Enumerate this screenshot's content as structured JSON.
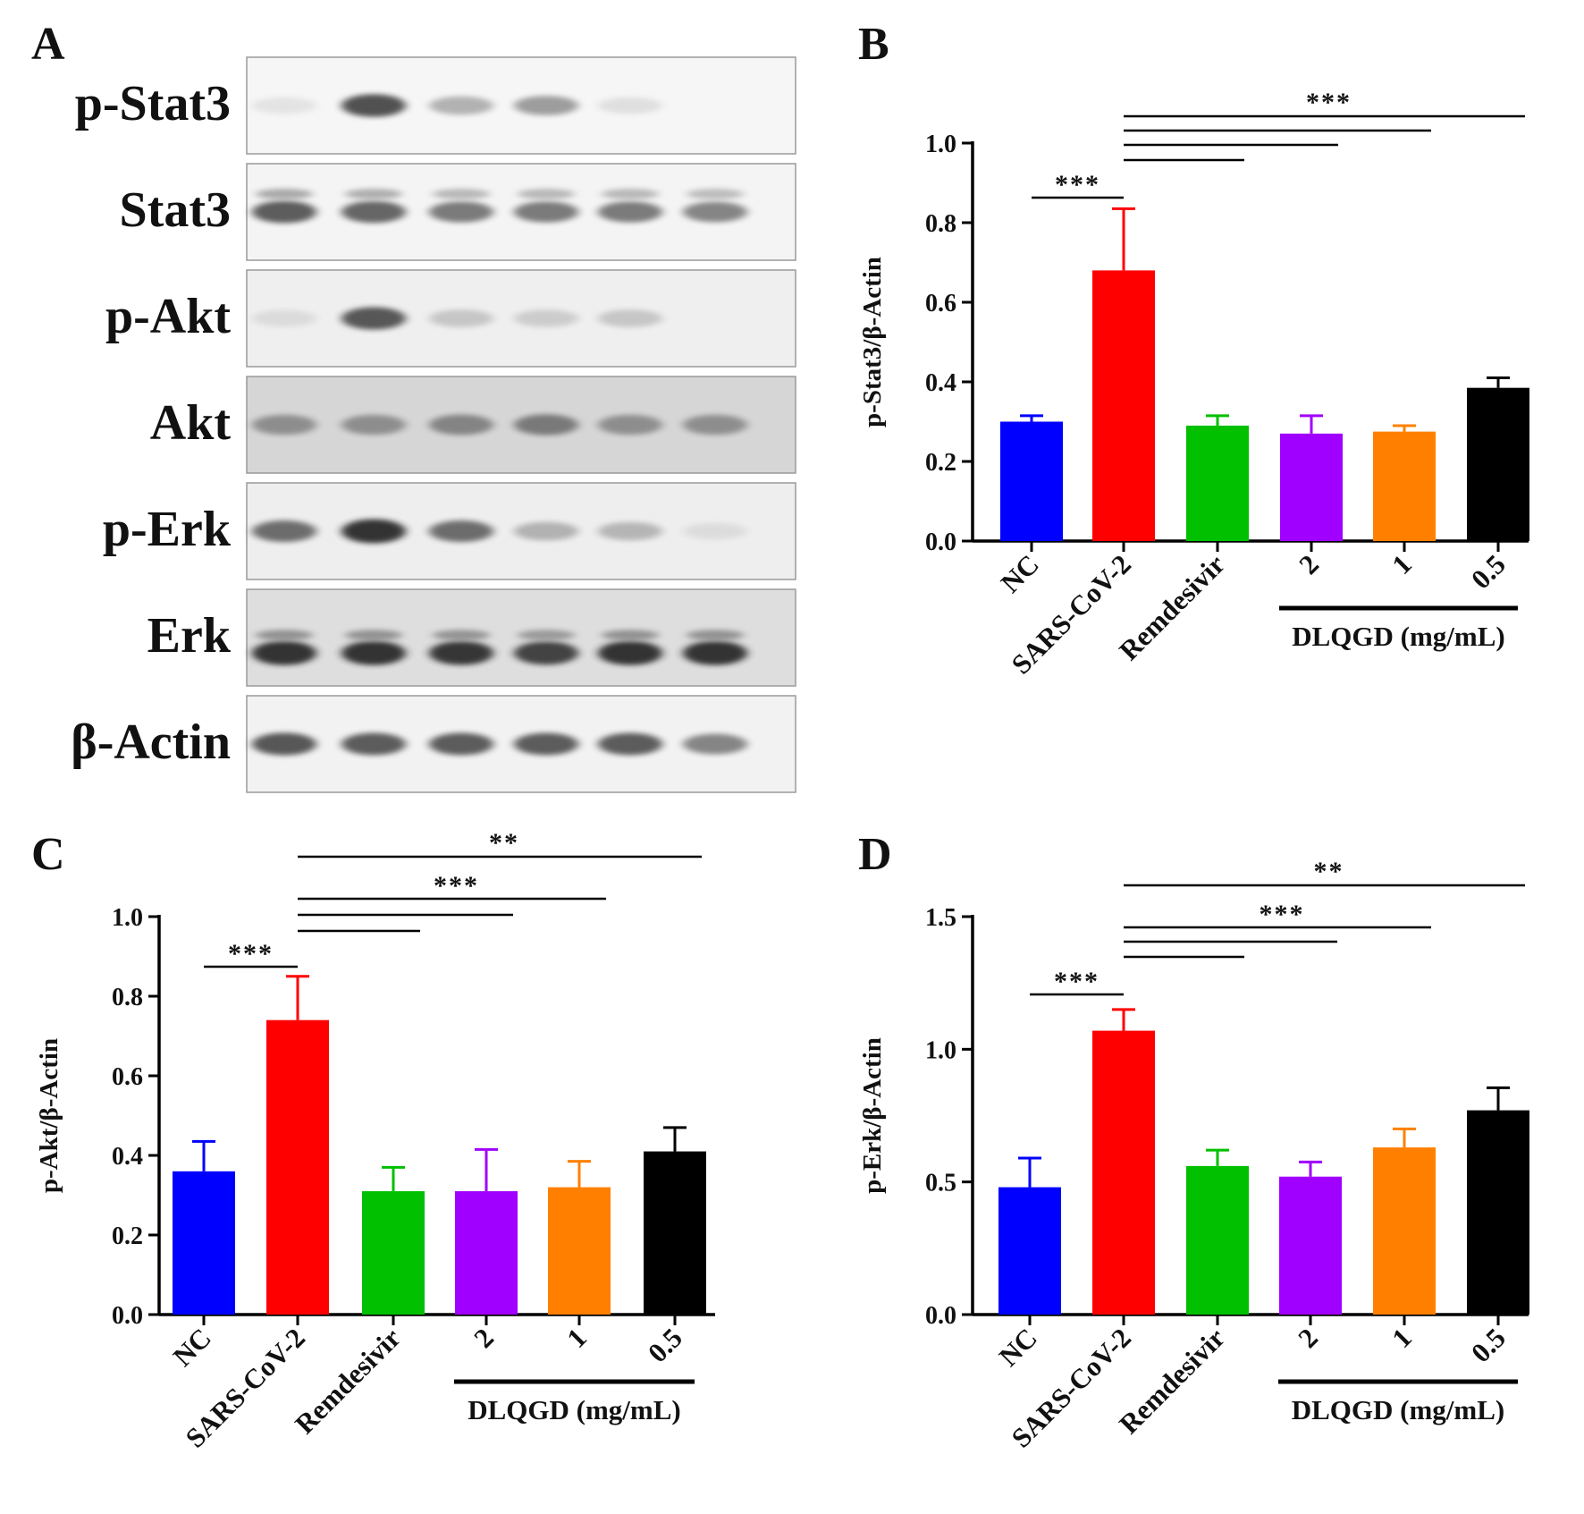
{
  "colors": {
    "NC": "#0000ff",
    "SARS-CoV-2": "#ff0000",
    "Remdesivir": "#00c000",
    "2": "#a000ff",
    "1": "#ff8000",
    "0.5": "#000000"
  },
  "panel_a": {
    "letter": "A",
    "rows": [
      {
        "label": "p-Stat3",
        "bg": "#f6f6f6",
        "bands": [
          0.04,
          0.75,
          0.28,
          0.38,
          0.06,
          0.0
        ],
        "lower": false,
        "double": false
      },
      {
        "label": "Stat3",
        "bg": "#f4f4f4",
        "bands": [
          0.7,
          0.65,
          0.55,
          0.55,
          0.55,
          0.5
        ],
        "lower": false,
        "double": true
      },
      {
        "label": "p-Akt",
        "bg": "#efefef",
        "bands": [
          0.08,
          0.72,
          0.18,
          0.15,
          0.18,
          0.0
        ],
        "lower": false,
        "double": false
      },
      {
        "label": "Akt",
        "bg": "#d6d6d6",
        "bands": [
          0.45,
          0.45,
          0.5,
          0.55,
          0.45,
          0.45
        ],
        "lower": false,
        "double": false
      },
      {
        "label": "p-Erk",
        "bg": "#eeeeee",
        "bands": [
          0.62,
          0.9,
          0.62,
          0.28,
          0.26,
          0.07
        ],
        "lower": false,
        "double": false
      },
      {
        "label": "Erk",
        "bg": "#dedede",
        "bands": [
          0.9,
          0.9,
          0.88,
          0.82,
          0.9,
          0.9
        ],
        "lower": true,
        "double": true
      },
      {
        "label": "β-Actin",
        "bg": "#f2f2f2",
        "bands": [
          0.72,
          0.7,
          0.7,
          0.7,
          0.7,
          0.5
        ],
        "lower": false,
        "double": false
      }
    ]
  },
  "chart_data": [
    {
      "panel": "B",
      "type": "bar",
      "ylabel": "p-Stat3/β-Actin",
      "ylim": [
        0,
        1.0
      ],
      "yticks": [
        "0.0",
        "0.2",
        "0.4",
        "0.6",
        "0.8",
        "1.0"
      ],
      "categories": [
        "NC",
        "SARS-CoV-2",
        "Remdesivir",
        "2",
        "1",
        "0.5"
      ],
      "values": [
        0.3,
        0.68,
        0.29,
        0.27,
        0.275,
        0.385
      ],
      "errors": [
        0.015,
        0.155,
        0.025,
        0.045,
        0.015,
        0.025
      ],
      "group_label": "DLQGD (mg/mL)",
      "sig_top": "***",
      "sig_left": "***"
    },
    {
      "panel": "C",
      "type": "bar",
      "ylabel": "p-Akt/β-Actin",
      "ylim": [
        0,
        1.0
      ],
      "yticks": [
        "0.0",
        "0.2",
        "0.4",
        "0.6",
        "0.8",
        "1.0"
      ],
      "categories": [
        "NC",
        "SARS-CoV-2",
        "Remdesivir",
        "2",
        "1",
        "0.5"
      ],
      "values": [
        0.36,
        0.74,
        0.31,
        0.31,
        0.32,
        0.41
      ],
      "errors": [
        0.075,
        0.11,
        0.06,
        0.105,
        0.065,
        0.06
      ],
      "group_label": "DLQGD (mg/mL)",
      "sig_top": "**",
      "sig_mid": "***",
      "sig_left": "***"
    },
    {
      "panel": "D",
      "type": "bar",
      "ylabel": "p-Erk/β-Actin",
      "ylim": [
        0,
        1.5
      ],
      "yticks": [
        "0.0",
        "0.5",
        "1.0",
        "1.5"
      ],
      "categories": [
        "NC",
        "SARS-CoV-2",
        "Remdesivir",
        "2",
        "1",
        "0.5"
      ],
      "values": [
        0.48,
        1.07,
        0.56,
        0.52,
        0.63,
        0.77
      ],
      "errors": [
        0.11,
        0.08,
        0.06,
        0.055,
        0.07,
        0.085
      ],
      "group_label": "DLQGD (mg/mL)",
      "sig_top": "**",
      "sig_mid": "***",
      "sig_left": "***"
    }
  ]
}
